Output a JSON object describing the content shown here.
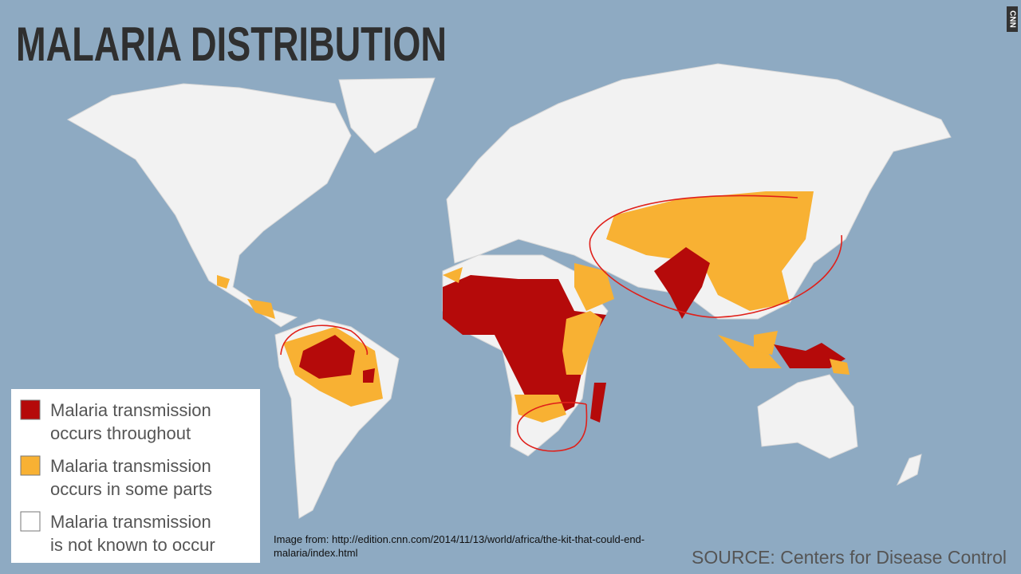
{
  "header": {
    "title": "MALARIA DISTRIBUTION",
    "logo": "CNN"
  },
  "legend": {
    "items": [
      {
        "lines": [
          "Malaria transmission",
          "occurs throughout"
        ],
        "color": "#b50a0a"
      },
      {
        "lines": [
          "Malaria transmission",
          "occurs in some parts"
        ],
        "color": "#f8b133"
      },
      {
        "lines": [
          "Malaria transmission",
          "is not known to occur"
        ],
        "color": "#ffffff"
      }
    ]
  },
  "credit": {
    "lines": [
      "Image from: http://edition.cnn.com/2014/11/13/world/africa/the-kit-that-could-end-",
      "malaria/index.html"
    ]
  },
  "source": "SOURCE: Centers for Disease Control"
}
